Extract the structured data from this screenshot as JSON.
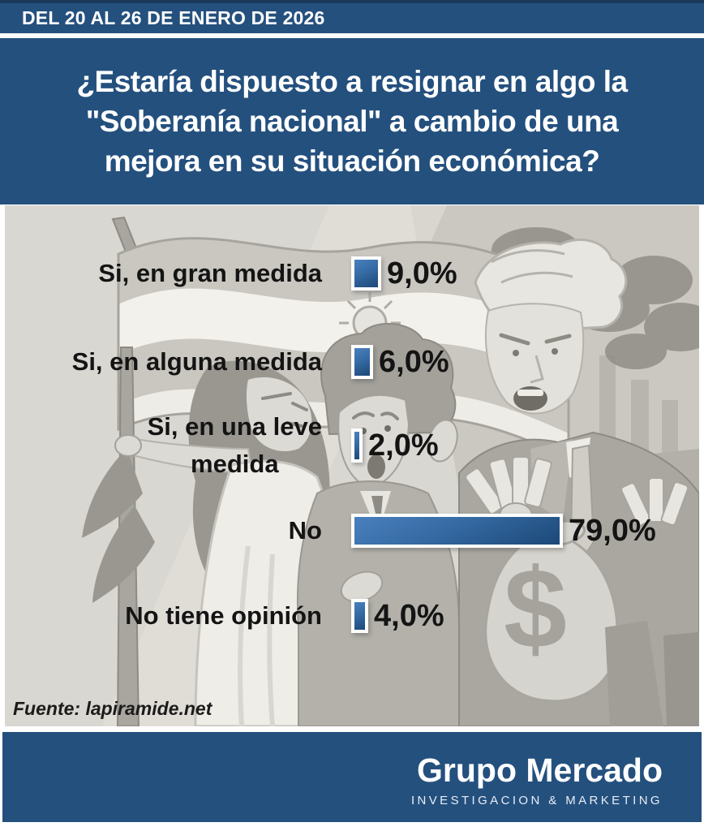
{
  "header": {
    "date_range": "DEL 20 AL 26 DE ENERO DE 2026"
  },
  "title": {
    "lines": [
      "¿Estaría dispuesto a resignar en algo la",
      "\"Soberanía nacional\" a cambio de una",
      "mejora en su situación económica?"
    ]
  },
  "chart_data": {
    "type": "bar",
    "orientation": "horizontal",
    "title": "¿Estaría dispuesto a resignar en algo la \"Soberanía nacional\" a cambio de una mejora en su situación económica?",
    "categories": [
      "Si, en gran medida",
      "Si, en alguna medida",
      "Si, en una leve medida",
      "No",
      "No tiene opinión"
    ],
    "display_categories": [
      "Si, en gran medida",
      "Si, en alguna medida",
      "Si, en una leve\nmedida",
      "No",
      "No tiene opinión"
    ],
    "values": [
      9.0,
      6.0,
      2.0,
      79.0,
      4.0
    ],
    "value_labels": [
      "9,0%",
      "6,0%",
      "2,0%",
      "79,0%",
      "4,0%"
    ],
    "xlim": [
      0,
      100
    ],
    "grid": false,
    "legend": false,
    "bar_color_gradient": [
      "#4A80BE",
      "#1C4878"
    ],
    "bar_border_color": "#FFFFFF",
    "label_color": "#141414"
  },
  "source": {
    "text": "Fuente: lapiramide.net"
  },
  "footer": {
    "brand": "Grupo Mercado",
    "tagline": "INVESTIGACION & MARKETING"
  },
  "illustration": {
    "dollar_sign": "$"
  },
  "colors": {
    "primary_blue": "#24507E",
    "background_gray": "#D9D7D1",
    "text_white": "#FFFFFF",
    "text_black": "#141414"
  }
}
